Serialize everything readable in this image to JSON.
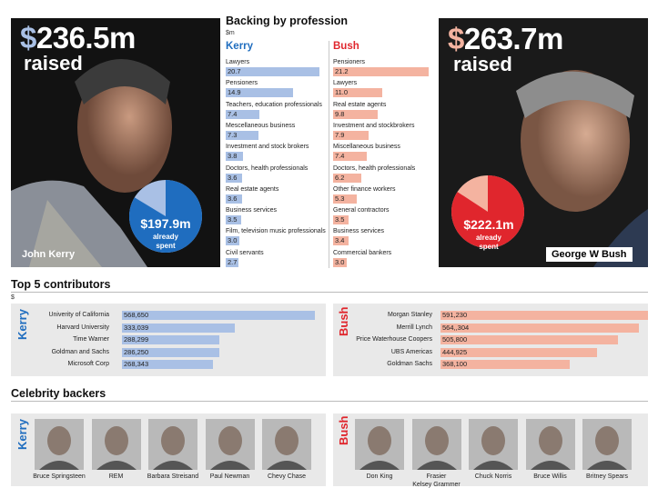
{
  "colors": {
    "kerry": "#1f6dbf",
    "kerry_bar": "#a9c0e5",
    "bush": "#e0262d",
    "bush_bar": "#f4b3a0",
    "panel": "#e9e9e9"
  },
  "kerry": {
    "amount_dollar": "$",
    "amount": "236.5m",
    "raised": "raised",
    "spent_amount": "$197.9m",
    "spent_label_1": "already",
    "spent_label_2": "spent",
    "spent_fraction": 0.8368,
    "name": "John Kerry"
  },
  "bush": {
    "amount_dollar": "$",
    "amount": "263.7m",
    "raised": "raised",
    "spent_amount": "$222.1m",
    "spent_label_1": "already",
    "spent_label_2": "spent",
    "spent_fraction": 0.8422,
    "name": "George W Bush"
  },
  "profession": {
    "title": "Backing by profession",
    "unit": "$m",
    "kerry_header": "Kerry",
    "bush_header": "Bush"
  },
  "contributors": {
    "title": "Top 5 contributors",
    "unit": "$",
    "kerry_label": "Kerry",
    "bush_label": "Bush"
  },
  "celebrities": {
    "title": "Celebrity backers",
    "kerry_label": "Kerry",
    "bush_label": "Bush",
    "kerry": [
      "Bruce Springsteen",
      "REM",
      "Barbara Streisand",
      "Paul Newman",
      "Chevy Chase"
    ],
    "bush": [
      "Don King",
      "Frasier\nKelsey Grammer",
      "Chuck Norris",
      "Bruce Willis",
      "Britney Spears"
    ]
  },
  "chart_data": [
    {
      "type": "pie",
      "title": "",
      "categories": [
        "already spent",
        "remaining"
      ],
      "values": [
        197.9,
        38.6
      ],
      "candidate": "Kerry"
    },
    {
      "type": "pie",
      "title": "",
      "categories": [
        "already spent",
        "remaining"
      ],
      "values": [
        222.1,
        41.6
      ],
      "candidate": "Bush"
    },
    {
      "type": "bar",
      "title": "Backing by profession",
      "ylabel": "$m",
      "series": [
        {
          "name": "Kerry",
          "categories": [
            "Lawyers",
            "Pensioners",
            "Teachers, education professionals",
            "Mescellaneous business",
            "Investment and stock brokers",
            "Doctors, health professionals",
            "Real estate agents",
            "Business services",
            "Film, television music professionals",
            "Civil servants"
          ],
          "values": [
            20.7,
            14.9,
            7.4,
            7.3,
            3.8,
            3.6,
            3.6,
            3.5,
            3.0,
            2.7
          ],
          "labels": [
            "20.7",
            "14.9",
            "7.4",
            "7.3",
            "3.8",
            "3.6",
            "3.6",
            "3.5",
            "3.0",
            "2.7"
          ]
        },
        {
          "name": "Bush",
          "categories": [
            "Pensioners",
            "Lawyers",
            "Real estate agents",
            "Investment and stockbrokers",
            "Miscellaneous business",
            "Doctors, health professionals",
            "Other finance workers",
            "General contractors",
            "Business services",
            "Commercial bankers"
          ],
          "values": [
            21.2,
            11.0,
            9.8,
            7.9,
            7.4,
            6.2,
            5.3,
            3.5,
            3.4,
            3.0
          ],
          "labels": [
            "21.2",
            "11.0",
            "9.8",
            "7.9",
            "7.4",
            "6.2",
            "5.3",
            "3.5",
            "3.4",
            "3.0"
          ]
        }
      ],
      "xlim": [
        0,
        21.2
      ]
    },
    {
      "type": "bar",
      "title": "Top 5 contributors",
      "ylabel": "$",
      "series": [
        {
          "name": "Kerry",
          "categories": [
            "Univerity of California",
            "Harvard University",
            "Time Warner",
            "Goldman and Sachs",
            "Microsoft Corp"
          ],
          "values": [
            568650,
            333039,
            288299,
            286250,
            268343
          ],
          "labels": [
            "568,650",
            "333,039",
            "288,299",
            "286,250",
            "268,343"
          ]
        },
        {
          "name": "Bush",
          "categories": [
            "Morgan Stanley",
            "Merrill Lynch",
            "Price Waterhouse Coopers",
            "UBS Americas",
            "Goldman Sachs"
          ],
          "values": [
            591230,
            564304,
            505800,
            444925,
            368100
          ],
          "labels": [
            "591,230",
            "564,,304",
            "505,800",
            "444,925",
            "368,100"
          ]
        }
      ]
    }
  ]
}
